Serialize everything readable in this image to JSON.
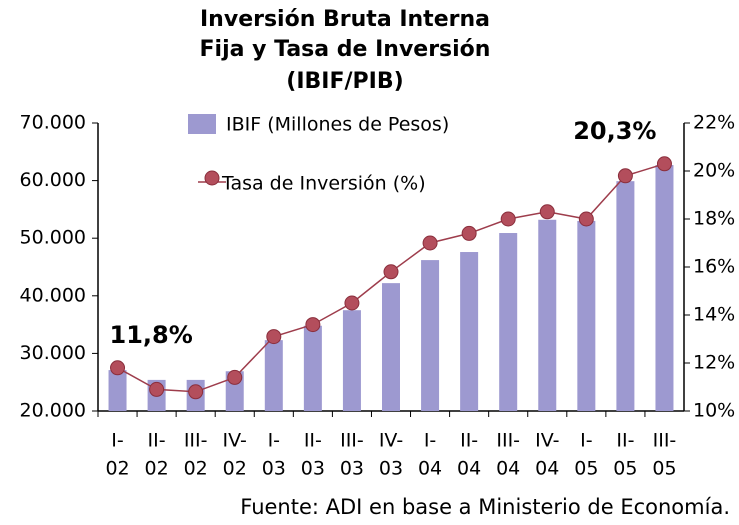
{
  "chart_data": {
    "type": "bar_line",
    "title": [
      "Inversión Bruta Interna",
      "Fija y  Tasa de Inversión",
      "(IBIF/PIB)"
    ],
    "categories": [
      [
        "I-",
        "02"
      ],
      [
        "II-",
        "02"
      ],
      [
        "III-",
        "02"
      ],
      [
        "IV-",
        "02"
      ],
      [
        "I-",
        "03"
      ],
      [
        "II-",
        "03"
      ],
      [
        "III-",
        "03"
      ],
      [
        "IV-",
        "03"
      ],
      [
        "I-",
        "04"
      ],
      [
        "II-",
        "04"
      ],
      [
        "III-",
        "04"
      ],
      [
        "IV-",
        "04"
      ],
      [
        "I-",
        "05"
      ],
      [
        "II-",
        "05"
      ],
      [
        "III-",
        "05"
      ]
    ],
    "series": [
      {
        "name": "IBIF (Millones de Pesos)",
        "color": "#9d99d0",
        "type": "bar",
        "values": [
          27100,
          25400,
          25400,
          26900,
          32300,
          34800,
          37500,
          42200,
          46200,
          47600,
          50900,
          53200,
          53000,
          59900,
          62700
        ]
      },
      {
        "name": "Tasa de Inversión (%)",
        "color": "#9e3d4c",
        "type": "line",
        "axis": "y2",
        "values": [
          11.8,
          10.9,
          10.8,
          11.4,
          13.1,
          13.6,
          14.5,
          15.8,
          17.0,
          17.4,
          18.0,
          18.3,
          18.0,
          19.8,
          20.3
        ],
        "value_labels": [
          "11,8%",
          null,
          null,
          null,
          null,
          null,
          null,
          null,
          null,
          null,
          null,
          null,
          null,
          null,
          "20,3%"
        ]
      }
    ],
    "ylim": [
      20000,
      70000
    ],
    "yticks": [
      {
        "value": 20000,
        "label": "20.000"
      },
      {
        "value": 30000,
        "label": "30.000"
      },
      {
        "value": 40000,
        "label": "40.000"
      },
      {
        "value": 50000,
        "label": "50.000"
      },
      {
        "value": 60000,
        "label": "60.000"
      },
      {
        "value": 70000,
        "label": "70.000"
      }
    ],
    "y2lim": [
      10,
      22
    ],
    "y2ticks": [
      {
        "value": 10,
        "label": "10%"
      },
      {
        "value": 12,
        "label": "12%"
      },
      {
        "value": 14,
        "label": "14%"
      },
      {
        "value": 16,
        "label": "16%"
      },
      {
        "value": 18,
        "label": "18%"
      },
      {
        "value": 20,
        "label": "20%"
      },
      {
        "value": 22,
        "label": "22%"
      }
    ],
    "source": "Fuente: ADI en base a Ministerio de Economía."
  }
}
